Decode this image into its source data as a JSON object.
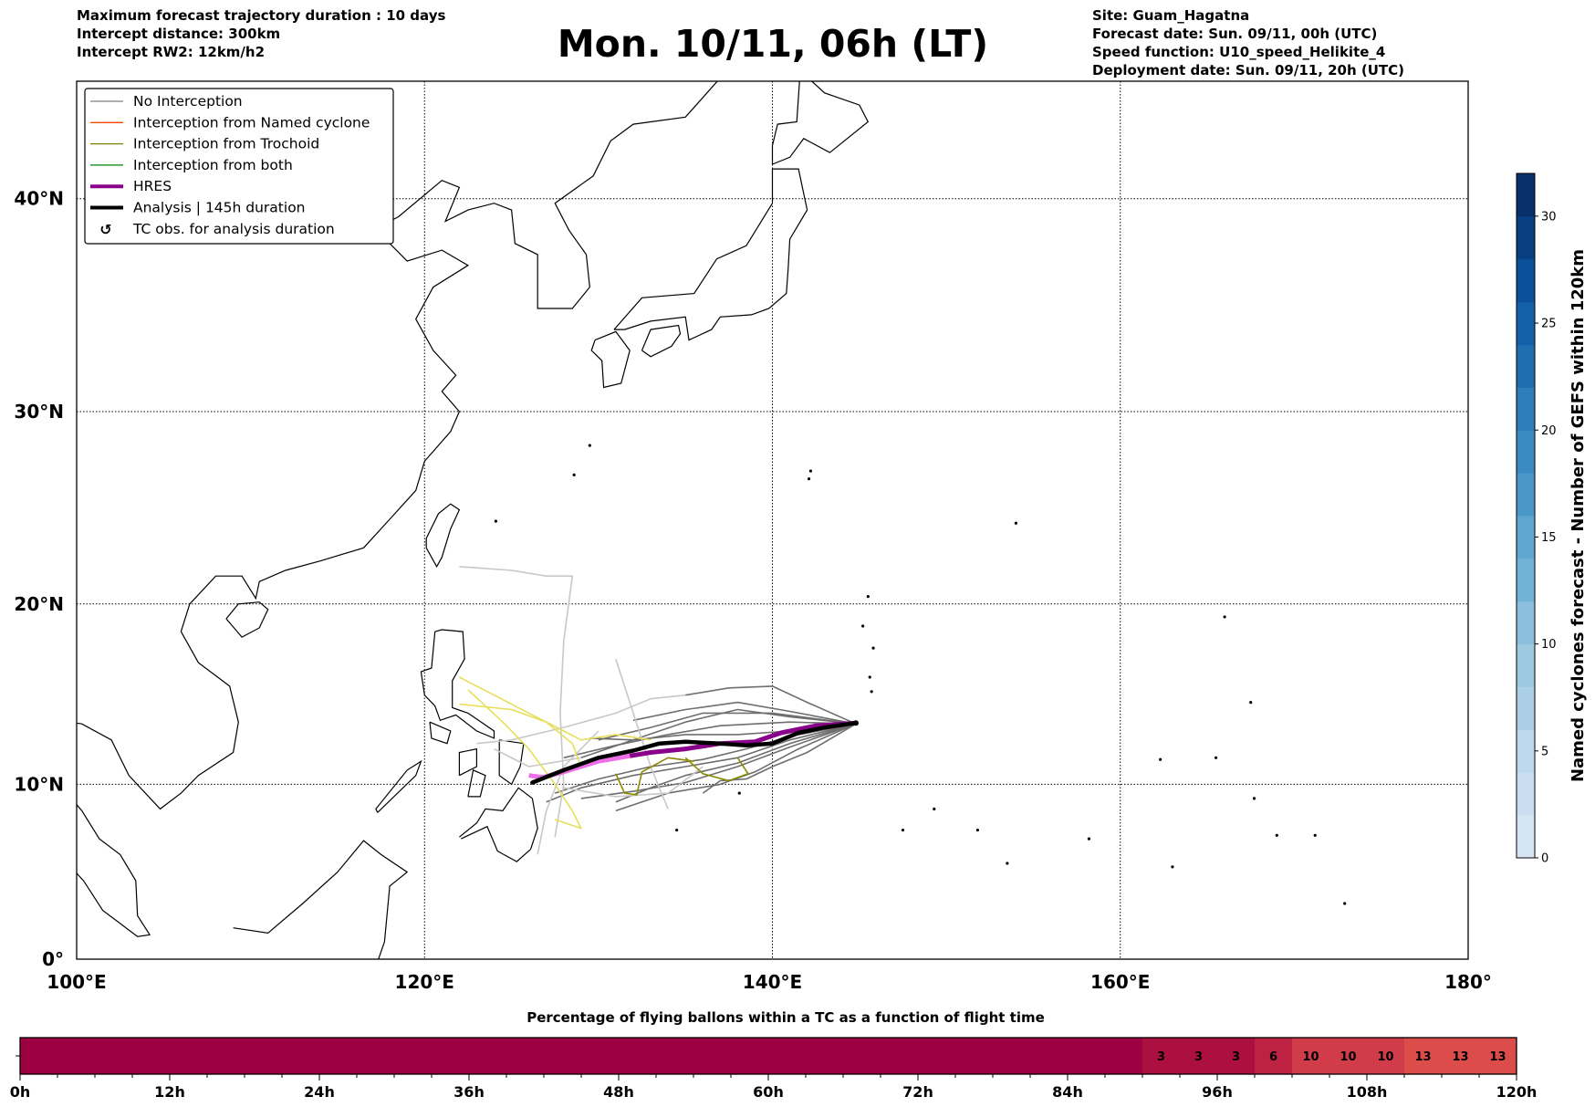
{
  "header": {
    "left": [
      "Maximum forecast trajectory duration : 10 days",
      "Intercept distance: 300km",
      "Intercept RW2: 12km/h2"
    ],
    "title": "Mon. 10/11, 06h (LT)",
    "right": [
      "Site: Guam_Hagatna",
      "Forecast date: Sun. 09/11, 00h (UTC)",
      "Speed function: U10_speed_Helikite_4",
      "Deployment date: Sun. 09/11, 20h (UTC)"
    ]
  },
  "legend": {
    "items": [
      {
        "label": "No Interception",
        "color": "#808080",
        "kind": "thin"
      },
      {
        "label": "Interception from Named cyclone",
        "color": "#ff4500",
        "kind": "thin"
      },
      {
        "label": "Interception from Trochoid",
        "color": "#808000",
        "kind": "thin"
      },
      {
        "label": "Interception from both",
        "color": "#008000",
        "kind": "thin"
      },
      {
        "label": "HRES",
        "color": "#8b008b",
        "kind": "thick"
      },
      {
        "label": "Analysis | 145h duration",
        "color": "#000000",
        "kind": "thick"
      },
      {
        "label": "TC obs. for analysis duration",
        "color": "#000000",
        "kind": "symbol",
        "symbol": "↺"
      }
    ]
  },
  "chart_data": [
    {
      "type": "line",
      "title": "Mon. 10/11, 06h (LT)",
      "xlim": [
        100,
        180
      ],
      "ylim": [
        0,
        45
      ],
      "grid": true,
      "legend_position": "top-left",
      "lat_ticks": [
        {
          "value": 0,
          "label": "0°"
        },
        {
          "value": 10,
          "label": "10°N"
        },
        {
          "value": 20,
          "label": "20°N"
        },
        {
          "value": 30,
          "label": "30°N"
        },
        {
          "value": 40,
          "label": "40°N"
        }
      ],
      "lon_ticks": [
        {
          "value": 100,
          "label": "100°E"
        },
        {
          "value": 120,
          "label": "120°E"
        },
        {
          "value": 140,
          "label": "140°E"
        },
        {
          "value": 160,
          "label": "160°E"
        },
        {
          "value": 180,
          "label": "180°"
        }
      ],
      "site": {
        "name": "Guam_Hagatna",
        "lon": 144.8,
        "lat": 13.45
      },
      "analysis": [
        [
          144.8,
          13.45
        ],
        [
          143,
          13.2
        ],
        [
          141.5,
          12.9
        ],
        [
          140,
          12.3
        ],
        [
          138.5,
          12.2
        ],
        [
          137,
          12.3
        ],
        [
          135,
          12.4
        ],
        [
          133.5,
          12.3
        ],
        [
          132,
          11.9
        ],
        [
          130,
          11.5
        ],
        [
          128,
          10.8
        ],
        [
          126.2,
          10.1
        ]
      ],
      "hres": [
        [
          144.8,
          13.45
        ],
        [
          142.5,
          13.3
        ],
        [
          140.5,
          12.9
        ],
        [
          139,
          12.4
        ],
        [
          137,
          12.3
        ],
        [
          135,
          12.0
        ],
        [
          133,
          11.8
        ],
        [
          131.8,
          11.6
        ]
      ],
      "hres_late": [
        [
          131.8,
          11.6
        ],
        [
          130,
          11.3
        ],
        [
          128,
          10.7
        ],
        [
          126.8,
          10.4
        ],
        [
          126,
          10.5
        ]
      ],
      "hres_colors": [
        "#8b008b",
        "#ee6fe6"
      ],
      "members": [
        {
          "color": "#6e6e6e",
          "path": [
            [
              144.8,
              13.4
            ],
            [
              141,
              13.8
            ],
            [
              138,
              14.2
            ],
            [
              135,
              13.5
            ],
            [
              132,
              12.5
            ],
            [
              129,
              11.5
            ]
          ]
        },
        {
          "color": "#6e6e6e",
          "path": [
            [
              144.8,
              13.4
            ],
            [
              142,
              14.6
            ],
            [
              140,
              15.5
            ],
            [
              137.5,
              15.4
            ],
            [
              135,
              15.0
            ]
          ]
        },
        {
          "color": "#6e6e6e",
          "path": [
            [
              144.8,
              13.4
            ],
            [
              141,
              12.5
            ],
            [
              138,
              11.5
            ],
            [
              135,
              11
            ],
            [
              132,
              10.5
            ],
            [
              129,
              9.8
            ],
            [
              127,
              9
            ]
          ]
        },
        {
          "color": "#6e6e6e",
          "path": [
            [
              144.8,
              13.4
            ],
            [
              141.5,
              12
            ],
            [
              139,
              10.7
            ],
            [
              137,
              10
            ],
            [
              134,
              9.5
            ],
            [
              131,
              8.5
            ]
          ]
        },
        {
          "color": "#6e6e6e",
          "path": [
            [
              144.8,
              13.4
            ],
            [
              141,
              13
            ],
            [
              138,
              12.8
            ],
            [
              135,
              12.8
            ],
            [
              132,
              12.5
            ],
            [
              129.5,
              12.6
            ]
          ]
        },
        {
          "color": "#6e6e6e",
          "path": [
            [
              144.8,
              13.4
            ],
            [
              141,
              12.7
            ],
            [
              138.5,
              12
            ],
            [
              136,
              11.4
            ],
            [
              133,
              11
            ],
            [
              130,
              10.3
            ],
            [
              127.5,
              9.5
            ]
          ]
        },
        {
          "color": "#6e6e6e",
          "path": [
            [
              144.8,
              13.4
            ],
            [
              142,
              11.8
            ],
            [
              140,
              11
            ],
            [
              138.5,
              10.3
            ],
            [
              137,
              10.2
            ],
            [
              136,
              9.5
            ]
          ]
        },
        {
          "color": "#6e6e6e",
          "path": [
            [
              144.8,
              13.4
            ],
            [
              141,
              13.5
            ],
            [
              137,
              13.3
            ],
            [
              134,
              12.8
            ],
            [
              131,
              12.2
            ],
            [
              128,
              11.5
            ]
          ]
        },
        {
          "color": "#6e6e6e",
          "path": [
            [
              144.8,
              13.4
            ],
            [
              141,
              12.3
            ],
            [
              138,
              11.2
            ],
            [
              135,
              10.5
            ],
            [
              133,
              9.8
            ],
            [
              131,
              9
            ]
          ]
        },
        {
          "color": "#6e6e6e",
          "path": [
            [
              144.8,
              13.4
            ],
            [
              140,
              14
            ],
            [
              136,
              14
            ],
            [
              133,
              13.2
            ],
            [
              130,
              12.5
            ]
          ]
        },
        {
          "color": "#6e6e6e",
          "path": [
            [
              144.8,
              13.4
            ],
            [
              141,
              14.1
            ],
            [
              138,
              14.6
            ],
            [
              135,
              14.2
            ],
            [
              132,
              13.6
            ]
          ]
        },
        {
          "color": "#6e6e6e",
          "path": [
            [
              144.8,
              13.4
            ],
            [
              141,
              12.1
            ],
            [
              138,
              11.0
            ],
            [
              135,
              10.1
            ],
            [
              132,
              9.6
            ],
            [
              129,
              9.2
            ]
          ]
        },
        {
          "color": "#c8c8c8",
          "path": [
            [
              135,
              15.0
            ],
            [
              133,
              14.8
            ],
            [
              131,
              14
            ],
            [
              128,
              13.2
            ],
            [
              125,
              12.5
            ],
            [
              123,
              12.3
            ]
          ]
        },
        {
          "color": "#c8c8c8",
          "path": [
            [
              122,
              22
            ],
            [
              125,
              21.8
            ],
            [
              127,
              21.5
            ],
            [
              128.5,
              21.5
            ],
            [
              128,
              18
            ],
            [
              127.8,
              14
            ],
            [
              128,
              10
            ],
            [
              127.5,
              7
            ]
          ]
        },
        {
          "color": "#c8c8c8",
          "path": [
            [
              131,
              17
            ],
            [
              132,
              14
            ],
            [
              133,
              11
            ],
            [
              134,
              8.6
            ]
          ]
        },
        {
          "color": "#c8c8c8",
          "path": [
            [
              130,
              13
            ],
            [
              128,
              11
            ],
            [
              127,
              8.5
            ],
            [
              126.5,
              6
            ]
          ]
        },
        {
          "color": "#c8c8c8",
          "path": [
            [
              136,
              11
            ],
            [
              134,
              9.5
            ],
            [
              131,
              9.3
            ],
            [
              128,
              9.8
            ]
          ]
        },
        {
          "color": "#c8c8c8",
          "path": [
            [
              129,
              11.5
            ],
            [
              126,
              11
            ],
            [
              124,
              12
            ]
          ]
        },
        {
          "color": "#e6df5a",
          "path": [
            [
              122,
              16
            ],
            [
              124,
              15
            ],
            [
              126,
              14
            ],
            [
              128,
              13
            ],
            [
              129,
              12.5
            ],
            [
              131,
              12.8
            ],
            [
              133,
              12.5
            ]
          ]
        },
        {
          "color": "#e6df5a",
          "path": [
            [
              122.5,
              15.3
            ],
            [
              124.5,
              13.5
            ],
            [
              126,
              12
            ],
            [
              127.5,
              10
            ],
            [
              128.5,
              8.5
            ],
            [
              129,
              7.5
            ],
            [
              127.5,
              8
            ]
          ]
        },
        {
          "color": "#e6df5a",
          "path": [
            [
              122,
              14.5
            ],
            [
              125,
              14.2
            ],
            [
              127,
              13.5
            ],
            [
              128.5,
              12.3
            ],
            [
              129,
              11
            ]
          ]
        },
        {
          "color": "#8b8b00",
          "path": [
            [
              131,
              10.6
            ],
            [
              131.5,
              9.5
            ],
            [
              132.2,
              9.4
            ],
            [
              132.5,
              10.7
            ],
            [
              134,
              11.5
            ],
            [
              135.5,
              11.3
            ]
          ]
        },
        {
          "color": "#8b8b00",
          "path": [
            [
              135,
              11.5
            ],
            [
              136,
              10.6
            ],
            [
              137.5,
              10.2
            ],
            [
              138.6,
              10.6
            ],
            [
              138,
              11.5
            ]
          ]
        }
      ]
    },
    {
      "type": "heatmap",
      "title": "Percentage of flying ballons within a TC as a function of flight time",
      "x_unit": "h",
      "step_hours": 3,
      "xlim": [
        0,
        120
      ],
      "tick_labels": [
        "0h",
        "12h",
        "24h",
        "36h",
        "48h",
        "60h",
        "72h",
        "84h",
        "96h",
        "108h",
        "120h"
      ],
      "values": [
        0,
        0,
        0,
        0,
        0,
        0,
        0,
        0,
        0,
        0,
        0,
        0,
        0,
        0,
        0,
        0,
        0,
        0,
        0,
        0,
        0,
        0,
        0,
        0,
        0,
        0,
        0,
        0,
        0,
        0,
        3,
        3,
        3,
        6,
        10,
        10,
        10,
        13,
        13,
        13
      ],
      "colors": {
        "0": "#9e0142",
        "3": "#ab1040",
        "6": "#bd2242",
        "10": "#d13c4b",
        "13": "#dc4c4a"
      }
    },
    {
      "type": "colorbar",
      "label": "Named cyclones forecast - Number of GEFS within 120km",
      "range": [
        0,
        32
      ],
      "step": 2,
      "ticks": [
        0,
        5,
        10,
        15,
        20,
        25,
        30
      ],
      "colors": [
        "#d6e5f4",
        "#cbdef1",
        "#bed8ec",
        "#abcfe6",
        "#9ecae1",
        "#8bbfdd",
        "#73b2d8",
        "#5fa6d1",
        "#4a98c9",
        "#3a8bc2",
        "#2c7db9",
        "#1f6eb0",
        "#1460a8",
        "#0b519a",
        "#083f83",
        "#08306b"
      ]
    }
  ]
}
